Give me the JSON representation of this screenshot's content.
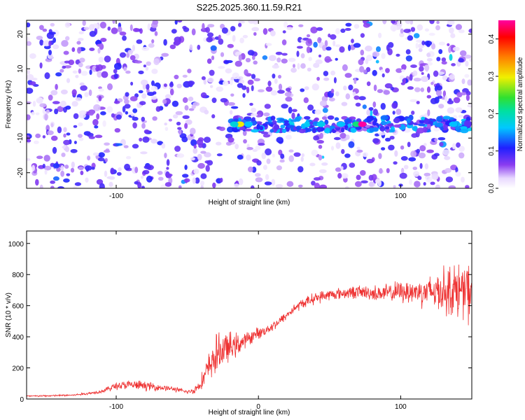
{
  "title": "S225.2025.360.11.59.R21",
  "chart_data": [
    {
      "type": "heatmap",
      "name": "spectrogram",
      "xlabel": "Height of straight line (km)",
      "ylabel": "Frequency (Hz)",
      "xlim": [
        -163,
        150
      ],
      "ylim": [
        -24.5,
        24
      ],
      "xticks": [
        -100,
        0,
        100
      ],
      "xtick_labels": [
        "-100",
        "0",
        "100"
      ],
      "yticks": [
        -20,
        -10,
        0,
        10,
        20
      ],
      "ytick_labels": [
        "-20",
        "-10",
        "0",
        "10",
        "20"
      ],
      "colorbar": {
        "label": "Normalized spectral amplitude",
        "range": [
          0,
          0.45
        ],
        "ticks": [
          0,
          0.1,
          0.2,
          0.3,
          0.4
        ],
        "tick_labels": [
          "0.0",
          "0.1",
          "0.2",
          "0.3",
          "0.4"
        ],
        "colors": [
          "#ffffff",
          "#e8d8ff",
          "#8a3cf0",
          "#2020ff",
          "#00c8ff",
          "#00e0a0",
          "#30e030",
          "#f0f000",
          "#ff8000",
          "#ff0000",
          "#ff00a0"
        ]
      },
      "signal_band": {
        "frequency": -6,
        "x_range": [
          -20,
          150
        ],
        "peak_x": 73,
        "peak_amplitude": 0.45
      }
    },
    {
      "type": "line",
      "name": "snr",
      "xlabel": "Height of straight line (km)",
      "ylabel": "SNR (10 * v/v)",
      "xlim": [
        -163,
        150
      ],
      "ylim": [
        0,
        1080
      ],
      "xticks": [
        -100,
        0,
        100
      ],
      "xtick_labels": [
        "-100",
        "0",
        "100"
      ],
      "yticks": [
        0,
        200,
        400,
        600,
        800,
        1000
      ],
      "ytick_labels": [
        "0",
        "200",
        "400",
        "600",
        "800",
        "1000"
      ],
      "color": "#ee3030",
      "series": [
        {
          "name": "SNR",
          "x": [
            -163,
            -150,
            -130,
            -120,
            -110,
            -100,
            -90,
            -80,
            -70,
            -60,
            -50,
            -45,
            -40,
            -35,
            -30,
            -25,
            -20,
            -15,
            -10,
            -5,
            0,
            5,
            10,
            15,
            20,
            25,
            30,
            40,
            50,
            60,
            70,
            80,
            90,
            100,
            110,
            120,
            130,
            140,
            150
          ],
          "y": [
            18,
            20,
            25,
            35,
            50,
            85,
            90,
            85,
            75,
            65,
            45,
            55,
            110,
            200,
            280,
            320,
            330,
            350,
            370,
            400,
            425,
            440,
            470,
            500,
            540,
            580,
            610,
            650,
            670,
            680,
            690,
            680,
            680,
            690,
            690,
            690,
            700,
            700,
            680
          ],
          "noise": [
            5,
            5,
            6,
            8,
            10,
            25,
            30,
            28,
            20,
            15,
            12,
            20,
            50,
            90,
            120,
            110,
            90,
            70,
            50,
            40,
            35,
            30,
            30,
            28,
            28,
            28,
            30,
            35,
            35,
            35,
            40,
            45,
            55,
            65,
            80,
            100,
            140,
            170,
            180
          ]
        }
      ]
    }
  ]
}
